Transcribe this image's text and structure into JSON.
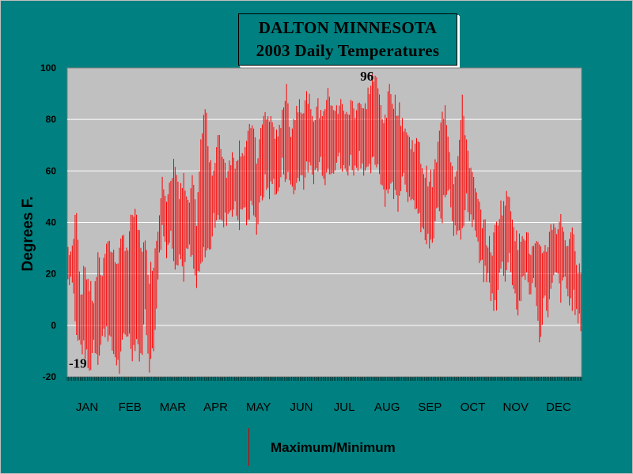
{
  "chart_data": {
    "type": "line",
    "title": "DALTON MINNESOTA",
    "subtitle": "2003 Daily Temperatures",
    "ylabel": "Degrees F.",
    "xlabel": "",
    "ylim": [
      -20,
      100
    ],
    "yticks": [
      -20,
      0,
      20,
      40,
      60,
      80,
      100
    ],
    "months": [
      "JAN",
      "FEB",
      "MAR",
      "APR",
      "MAY",
      "JUN",
      "JUL",
      "AUG",
      "SEP",
      "OCT",
      "NOV",
      "DEC"
    ],
    "grid": true,
    "legend": "bottom-center",
    "series": [
      {
        "name": "Maximum/Minimum",
        "color": "#ff0000",
        "monthly_min_max": [
          [
            [
              18,
              30
            ],
            [
              20,
              28
            ],
            [
              -5,
              47
            ],
            [
              -8,
              12
            ],
            [
              -10,
              23
            ],
            [
              -19,
              15
            ],
            [
              -6,
              10
            ],
            [
              -12,
              25
            ],
            [
              -5,
              20
            ],
            [
              0,
              35
            ]
          ],
          [
            [
              -8,
              30
            ],
            [
              -12,
              25
            ],
            [
              -17,
              28
            ],
            [
              -5,
              34
            ],
            [
              -2,
              30
            ],
            [
              -10,
              44
            ],
            [
              -5,
              40
            ],
            [
              -14,
              32
            ],
            [
              5,
              30
            ],
            [
              -15,
              20
            ]
          ],
          [
            [
              -10,
              26
            ],
            [
              20,
              38
            ],
            [
              38,
              61
            ],
            [
              30,
              46
            ],
            [
              35,
              55
            ],
            [
              25,
              65
            ],
            [
              28,
              50
            ],
            [
              20,
              56
            ],
            [
              30,
              45
            ],
            [
              25,
              55
            ]
          ],
          [
            [
              15,
              42
            ],
            [
              22,
              70
            ],
            [
              30,
              85
            ],
            [
              28,
              66
            ],
            [
              40,
              60
            ],
            [
              45,
              72
            ],
            [
              38,
              68
            ],
            [
              42,
              60
            ],
            [
              46,
              66
            ],
            [
              45,
              64
            ]
          ],
          [
            [
              40,
              70
            ],
            [
              47,
              68
            ],
            [
              38,
              72
            ],
            [
              50,
              80
            ],
            [
              37,
              64
            ],
            [
              48,
              75
            ],
            [
              55,
              82
            ],
            [
              52,
              80
            ],
            [
              56,
              78
            ],
            [
              50,
              70
            ]
          ],
          [
            [
              62,
              85
            ],
            [
              58,
              90
            ],
            [
              55,
              76
            ],
            [
              52,
              82
            ],
            [
              60,
              88
            ],
            [
              56,
              84
            ],
            [
              62,
              90
            ],
            [
              58,
              78
            ],
            [
              60,
              86
            ],
            [
              64,
              82
            ]
          ],
          [
            [
              58,
              86
            ],
            [
              62,
              90
            ],
            [
              62,
              85
            ],
            [
              66,
              82
            ],
            [
              60,
              88
            ],
            [
              60,
              80
            ],
            [
              64,
              86
            ],
            [
              60,
              84
            ],
            [
              66,
              88
            ],
            [
              62,
              82
            ]
          ],
          [
            [
              58,
              90
            ],
            [
              62,
              96
            ],
            [
              64,
              94
            ],
            [
              58,
              86
            ],
            [
              50,
              78
            ],
            [
              55,
              92
            ],
            [
              52,
              88
            ],
            [
              48,
              84
            ],
            [
              60,
              80
            ],
            [
              55,
              75
            ]
          ],
          [
            [
              45,
              70
            ],
            [
              48,
              72
            ],
            [
              40,
              68
            ],
            [
              35,
              60
            ],
            [
              32,
              58
            ],
            [
              30,
              56
            ],
            [
              45,
              65
            ],
            [
              40,
              78
            ],
            [
              50,
              86
            ],
            [
              55,
              70
            ]
          ],
          [
            [
              36,
              58
            ],
            [
              40,
              65
            ],
            [
              35,
              86
            ],
            [
              48,
              72
            ],
            [
              42,
              60
            ],
            [
              38,
              52
            ],
            [
              25,
              45
            ],
            [
              20,
              40
            ],
            [
              18,
              32
            ],
            [
              10,
              30
            ]
          ],
          [
            [
              6,
              40
            ],
            [
              25,
              46
            ],
            [
              20,
              48
            ],
            [
              26,
              51
            ],
            [
              15,
              40
            ],
            [
              5,
              30
            ],
            [
              15,
              38
            ],
            [
              20,
              35
            ],
            [
              12,
              28
            ],
            [
              18,
              30
            ]
          ],
          [
            [
              -8,
              28
            ],
            [
              10,
              30
            ],
            [
              6,
              32
            ],
            [
              15,
              40
            ],
            [
              20,
              38
            ],
            [
              12,
              41
            ],
            [
              18,
              35
            ],
            [
              8,
              30
            ],
            [
              10,
              38
            ],
            [
              1,
              22
            ]
          ]
        ]
      }
    ],
    "annotations": [
      {
        "text": "96",
        "x": "AUG",
        "y": 96
      },
      {
        "text": "-19",
        "x": "JAN",
        "y": -19
      }
    ]
  }
}
